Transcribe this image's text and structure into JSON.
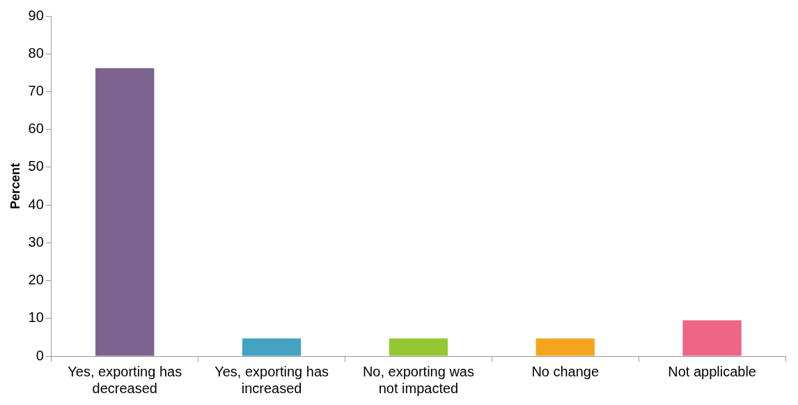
{
  "chart_data": {
    "type": "bar",
    "ylabel": "Percent",
    "categories": [
      "Yes, exporting has decreased",
      "Yes, exporting has increased",
      "No, exporting was not impacted",
      "No change",
      "Not applicable"
    ],
    "values": [
      76.2,
      4.7,
      4.7,
      4.7,
      9.5
    ],
    "colors": [
      "#7d6390",
      "#43a3c1",
      "#93c833",
      "#f5a51d",
      "#ef6586"
    ],
    "ylim": [
      0,
      90
    ],
    "yticks": [
      0,
      10,
      20,
      30,
      40,
      50,
      60,
      70,
      80,
      90
    ],
    "grid": false,
    "legend": false
  }
}
